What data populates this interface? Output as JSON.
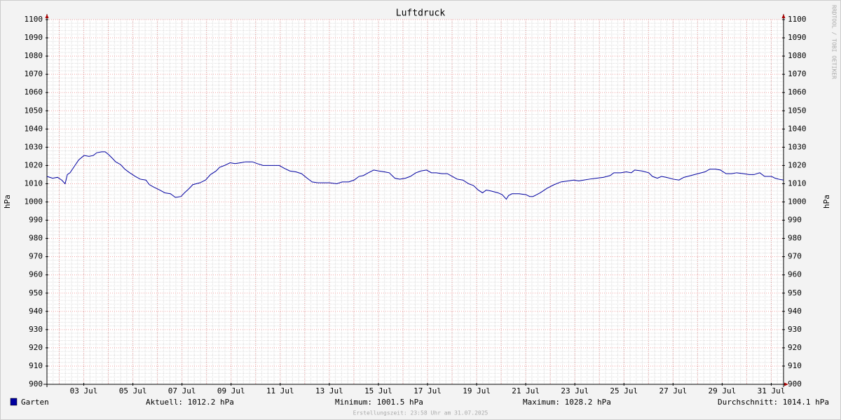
{
  "chart_data": {
    "type": "line",
    "title": "Luftdruck",
    "y_label": "hPa",
    "y2_label": "hPa",
    "credit": "RRDTOOL / TOBI OETIKER",
    "footer": "Erstellungszeit: 23:58 Uhr am 31.07.2025",
    "ylim": [
      900,
      1100
    ],
    "yticks": [
      900,
      910,
      920,
      930,
      940,
      950,
      960,
      970,
      980,
      990,
      1000,
      1010,
      1020,
      1030,
      1040,
      1050,
      1060,
      1070,
      1080,
      1090,
      1100
    ],
    "xlim": [
      1.5,
      31.5
    ],
    "xticks": [
      {
        "value": 3,
        "label": "03 Jul"
      },
      {
        "value": 5,
        "label": "05 Jul"
      },
      {
        "value": 7,
        "label": "07 Jul"
      },
      {
        "value": 9,
        "label": "09 Jul"
      },
      {
        "value": 11,
        "label": "11 Jul"
      },
      {
        "value": 13,
        "label": "13 Jul"
      },
      {
        "value": 15,
        "label": "15 Jul"
      },
      {
        "value": 17,
        "label": "17 Jul"
      },
      {
        "value": 19,
        "label": "19 Jul"
      },
      {
        "value": 21,
        "label": "21 Jul"
      },
      {
        "value": 23,
        "label": "23 Jul"
      },
      {
        "value": 25,
        "label": "25 Jul"
      },
      {
        "value": 27,
        "label": "27 Jul"
      },
      {
        "value": 29,
        "label": "29 Jul"
      },
      {
        "value": 31,
        "label": "31 Jul"
      }
    ],
    "grid": true,
    "x": [
      1.5,
      1.73,
      1.93,
      2.1,
      2.24,
      2.33,
      2.44,
      2.59,
      2.79,
      3.01,
      3.21,
      3.39,
      3.53,
      3.73,
      3.87,
      4.01,
      4.16,
      4.3,
      4.5,
      4.67,
      4.87,
      5.1,
      5.3,
      5.53,
      5.67,
      5.87,
      6.1,
      6.3,
      6.53,
      6.73,
      6.96,
      7.1,
      7.3,
      7.44,
      7.73,
      7.96,
      8.16,
      8.39,
      8.53,
      8.73,
      8.96,
      9.16,
      9.39,
      9.59,
      9.87,
      10.07,
      10.3,
      10.59,
      10.96,
      11.16,
      11.39,
      11.64,
      11.87,
      12.1,
      12.3,
      12.53,
      12.79,
      13.01,
      13.3,
      13.53,
      13.79,
      14.01,
      14.21,
      14.39,
      14.59,
      14.81,
      15.01,
      15.24,
      15.44,
      15.67,
      15.87,
      16.1,
      16.3,
      16.53,
      16.73,
      16.96,
      17.16,
      17.36,
      17.59,
      17.81,
      18.01,
      18.21,
      18.44,
      18.67,
      18.87,
      19.07,
      19.24,
      19.39,
      19.59,
      19.87,
      20.04,
      20.21,
      20.3,
      20.44,
      20.73,
      21.01,
      21.16,
      21.3,
      21.59,
      21.87,
      22.16,
      22.44,
      22.73,
      22.96,
      23.16,
      23.36,
      23.59,
      23.87,
      24.16,
      24.44,
      24.59,
      24.87,
      25.1,
      25.3,
      25.44,
      25.73,
      26.01,
      26.16,
      26.36,
      26.53,
      26.73,
      27.01,
      27.24,
      27.44,
      27.73,
      28.01,
      28.3,
      28.5,
      28.73,
      28.93,
      29.16,
      29.39,
      29.59,
      29.87,
      30.1,
      30.3,
      30.53,
      30.73,
      31.01,
      31.16,
      31.3,
      31.5
    ],
    "series": [
      {
        "name": "Garten",
        "color": "#0000a0",
        "values": [
          1014,
          1013,
          1013.5,
          1012,
          1010,
          1015,
          1016,
          1019,
          1023,
          1025.5,
          1025,
          1025.5,
          1027,
          1027.5,
          1027.5,
          1026,
          1024,
          1022,
          1020.5,
          1018,
          1016,
          1014,
          1012.5,
          1012,
          1009.5,
          1008,
          1006.5,
          1005,
          1004.5,
          1002.5,
          1003,
          1005,
          1007.5,
          1009.5,
          1010.5,
          1012,
          1015,
          1017,
          1019,
          1020,
          1021.5,
          1021,
          1021.5,
          1022,
          1022,
          1021,
          1020,
          1020,
          1020,
          1018.5,
          1017,
          1016.5,
          1015.5,
          1013,
          1011,
          1010.5,
          1010.5,
          1010.5,
          1010,
          1011,
          1011,
          1012,
          1014,
          1014.5,
          1016,
          1017.5,
          1017,
          1016.5,
          1016,
          1013,
          1012.5,
          1013,
          1014,
          1016,
          1017,
          1017.5,
          1016,
          1016,
          1015.5,
          1015.5,
          1014,
          1012.5,
          1012,
          1010,
          1009,
          1006.5,
          1005,
          1006.5,
          1006,
          1005,
          1004,
          1001.5,
          1003.5,
          1004.5,
          1004.5,
          1004,
          1003,
          1003,
          1005,
          1007.5,
          1009.5,
          1011,
          1011.5,
          1012,
          1011.5,
          1012,
          1012.5,
          1013,
          1013.5,
          1014.5,
          1016,
          1016,
          1016.5,
          1016,
          1017.5,
          1017,
          1016,
          1014,
          1013,
          1014,
          1013.5,
          1012.5,
          1012,
          1013.5,
          1014.5,
          1015.5,
          1016.5,
          1018,
          1018,
          1017.5,
          1015.5,
          1015.5,
          1016,
          1015.5,
          1015,
          1015,
          1016,
          1014,
          1014,
          1013,
          1012.5,
          1012
        ]
      }
    ],
    "stats": [
      "Aktuell: 1012.2 hPa",
      "Minimum: 1001.5 hPa",
      "Maximum: 1028.2 hPa",
      "Durchschnitt: 1014.1 hPa"
    ]
  }
}
